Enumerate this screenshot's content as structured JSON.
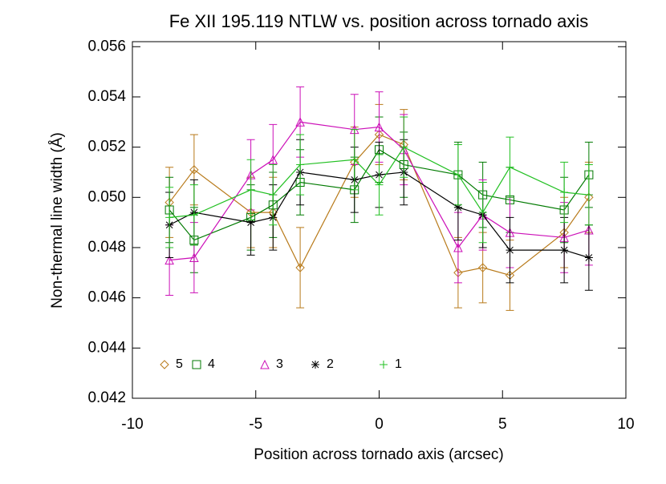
{
  "chart_data": {
    "type": "errorbar-line",
    "title": "Fe XII 195.119 NTLW vs. position across tornado axis",
    "xlabel": "Position across tornado axis (arcsec)",
    "ylabel": "Non-thermal line width (Å)",
    "x": [
      -8.5,
      -7.5,
      -5.2,
      -4.3,
      -3.2,
      -1.0,
      0,
      1.0,
      3.2,
      4.2,
      5.3,
      7.5,
      8.5
    ],
    "xlim": [
      -10,
      10
    ],
    "xticks": [
      -10,
      -5,
      0,
      5,
      10
    ],
    "ylim": [
      0.042,
      0.0562
    ],
    "yticks": [
      0.042,
      0.044,
      0.046,
      0.048,
      {
        "value": 0.05,
        "label": "0.050"
      },
      0.052,
      0.054,
      0.056
    ],
    "series": [
      {
        "name": "5",
        "color": "#b87a1a",
        "marker": "diamond",
        "values": [
          0.0498,
          0.0511,
          0.0494,
          0.0494,
          0.0472,
          0.0514,
          0.0525,
          0.0521,
          0.047,
          0.0472,
          0.0469,
          0.0486,
          0.05
        ],
        "errors": [
          0.0014,
          0.0014,
          0.0014,
          0.0014,
          0.0016,
          0.0014,
          0.0012,
          0.0014,
          0.0014,
          0.0014,
          0.0014,
          0.0014,
          0.0014
        ]
      },
      {
        "name": "4",
        "color": "#007a00",
        "marker": "square",
        "values": [
          0.0495,
          0.0483,
          0.0492,
          0.0497,
          0.0506,
          0.0503,
          0.0519,
          0.0513,
          0.0509,
          0.0501,
          0.0499,
          0.0495,
          0.0509
        ],
        "errors": [
          0.0013,
          0.0013,
          0.0013,
          0.0013,
          0.0013,
          0.0013,
          0.0013,
          0.0013,
          0.0013,
          0.0013,
          0.0013,
          0.0013,
          0.0013
        ]
      },
      {
        "name": "3",
        "color": "#cc10b8",
        "marker": "triangle",
        "values": [
          0.0475,
          0.0476,
          0.0509,
          0.0515,
          0.053,
          0.0527,
          0.0528,
          0.0519,
          0.048,
          0.0493,
          0.0486,
          0.0484,
          0.0487
        ],
        "errors": [
          0.0014,
          0.0014,
          0.0014,
          0.0014,
          0.0014,
          0.0014,
          0.0014,
          0.0014,
          0.0014,
          0.0014,
          0.0014,
          0.0014,
          0.0014
        ]
      },
      {
        "name": "2",
        "color": "#000000",
        "marker": "asterisk",
        "values": [
          0.0489,
          0.0494,
          0.049,
          0.0492,
          0.051,
          0.0507,
          0.0509,
          0.051,
          0.0496,
          0.0493,
          0.0479,
          0.0479,
          0.0476
        ],
        "errors": [
          0.0013,
          0.0013,
          0.0013,
          0.0013,
          0.0013,
          0.0013,
          0.0013,
          0.0013,
          0.0013,
          0.0013,
          0.0013,
          0.0013,
          0.0013
        ]
      },
      {
        "name": "1",
        "color": "#22c022",
        "marker": "plus",
        "values": [
          0.0492,
          0.0493,
          0.0503,
          0.0501,
          0.0513,
          0.0515,
          0.0505,
          0.052,
          0.0509,
          0.0494,
          0.0512,
          0.0502,
          0.0501
        ],
        "errors": [
          0.0012,
          0.0012,
          0.0012,
          0.0012,
          0.0012,
          0.0012,
          0.0012,
          0.0012,
          0.0012,
          0.0012,
          0.0012,
          0.0012,
          0.0012
        ]
      }
    ]
  }
}
